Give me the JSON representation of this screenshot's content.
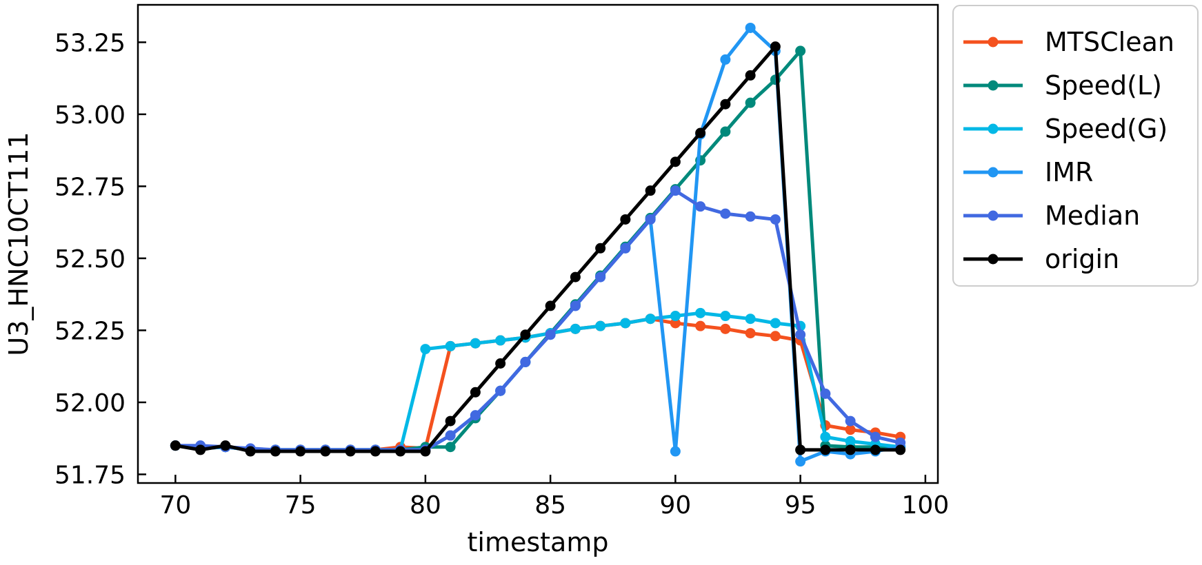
{
  "chart_data": {
    "type": "line",
    "xlabel": "timestamp",
    "ylabel": "U3_HNC10CT111",
    "xlim": [
      68.5,
      100.5
    ],
    "ylim": [
      51.72,
      53.38
    ],
    "xticks": [
      70,
      75,
      80,
      85,
      90,
      95,
      100
    ],
    "xtick_labels": [
      "70",
      "75",
      "80",
      "85",
      "90",
      "95",
      "100"
    ],
    "yticks": [
      51.75,
      52.0,
      52.25,
      52.5,
      52.75,
      53.0,
      53.25
    ],
    "ytick_labels": [
      "51.75",
      "52.00",
      "52.25",
      "52.50",
      "52.75",
      "53.00",
      "53.25"
    ],
    "grid": false,
    "legend_position": "outside-right",
    "x": [
      70,
      71,
      72,
      73,
      74,
      75,
      76,
      77,
      78,
      79,
      80,
      81,
      82,
      83,
      84,
      85,
      86,
      87,
      88,
      89,
      90,
      91,
      92,
      93,
      94,
      95,
      96,
      97,
      98,
      99
    ],
    "series": [
      {
        "name": "MTSClean",
        "color": "#f4511e",
        "values": [
          51.85,
          51.84,
          51.845,
          51.835,
          51.835,
          51.835,
          51.835,
          51.835,
          51.835,
          51.845,
          51.84,
          52.195,
          52.205,
          52.215,
          52.225,
          52.24,
          52.255,
          52.265,
          52.275,
          52.29,
          52.275,
          52.265,
          52.255,
          52.24,
          52.23,
          52.215,
          51.92,
          51.905,
          51.895,
          51.88
        ]
      },
      {
        "name": "Speed(L)",
        "color": "#00897b",
        "values": [
          51.85,
          51.84,
          51.845,
          51.835,
          51.835,
          51.835,
          51.835,
          51.835,
          51.835,
          51.835,
          51.845,
          51.845,
          51.945,
          52.04,
          52.14,
          52.24,
          52.34,
          52.44,
          52.54,
          52.64,
          52.74,
          52.84,
          52.94,
          53.04,
          53.12,
          53.22,
          51.85,
          51.845,
          51.845,
          51.845
        ]
      },
      {
        "name": "Speed(G)",
        "color": "#03b8e6",
        "values": [
          51.85,
          51.84,
          51.845,
          51.835,
          51.835,
          51.835,
          51.835,
          51.835,
          51.835,
          51.835,
          52.185,
          52.195,
          52.205,
          52.215,
          52.225,
          52.24,
          52.255,
          52.265,
          52.275,
          52.29,
          52.3,
          52.31,
          52.3,
          52.29,
          52.275,
          52.265,
          51.88,
          51.865,
          51.855,
          51.845
        ]
      },
      {
        "name": "IMR",
        "color": "#2196f3",
        "values": [
          51.85,
          51.84,
          51.845,
          51.835,
          51.835,
          51.835,
          51.835,
          51.835,
          51.835,
          51.835,
          51.835,
          51.885,
          51.955,
          52.04,
          52.14,
          52.235,
          52.335,
          52.435,
          52.535,
          52.635,
          51.83,
          52.93,
          53.19,
          53.3,
          53.22,
          51.795,
          51.83,
          51.82,
          51.83,
          51.845
        ]
      },
      {
        "name": "Median",
        "color": "#4169e1",
        "values": [
          51.85,
          51.85,
          51.845,
          51.84,
          51.835,
          51.835,
          51.835,
          51.835,
          51.835,
          51.835,
          51.835,
          51.885,
          51.955,
          52.04,
          52.14,
          52.235,
          52.335,
          52.435,
          52.535,
          52.635,
          52.735,
          52.68,
          52.655,
          52.645,
          52.635,
          52.235,
          52.03,
          51.935,
          51.88,
          51.86
        ]
      },
      {
        "name": "origin",
        "color": "#000000",
        "values": [
          51.85,
          51.835,
          51.85,
          51.83,
          51.83,
          51.83,
          51.83,
          51.83,
          51.83,
          51.83,
          51.83,
          51.935,
          52.035,
          52.135,
          52.235,
          52.335,
          52.435,
          52.535,
          52.635,
          52.735,
          52.835,
          52.935,
          53.035,
          53.135,
          53.235,
          51.835,
          51.835,
          51.835,
          51.835,
          51.835
        ]
      }
    ]
  }
}
